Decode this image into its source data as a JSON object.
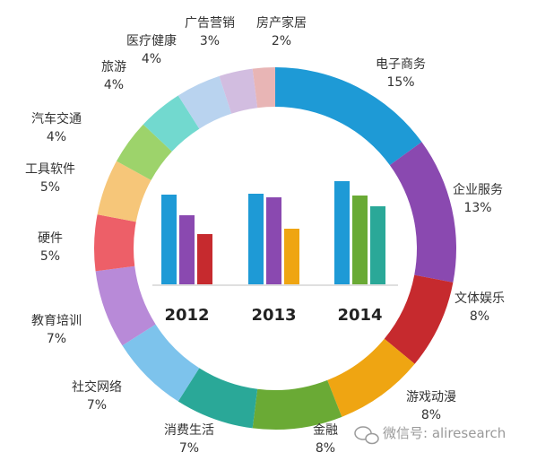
{
  "chart_data": [
    {
      "type": "pie",
      "variant": "donut",
      "categories": [
        "电子商务",
        "企业服务",
        "文体娱乐",
        "游戏动漫",
        "金融",
        "消费生活",
        "社交网络",
        "教育培训",
        "硬件",
        "工具软件",
        "汽车交通",
        "旅游",
        "医疗健康",
        "广告营销",
        "房产家居"
      ],
      "values": [
        15,
        13,
        8,
        8,
        8,
        7,
        7,
        7,
        5,
        5,
        4,
        4,
        4,
        3,
        2
      ],
      "value_labels": [
        "15%",
        "13%",
        "8%",
        "8%",
        "8%",
        "7%",
        "7%",
        "7%",
        "5%",
        "5%",
        "4%",
        "4%",
        "4%",
        "3%",
        "2%"
      ],
      "colors": [
        "#1e9ad6",
        "#8a49b0",
        "#c62a2e",
        "#efa512",
        "#6aaa35",
        "#2aa898",
        "#7dc3ec",
        "#b88ad8",
        "#ed5f68",
        "#f6c679",
        "#9dd36b",
        "#72d9cf",
        "#b9d3ef",
        "#d2bde0",
        "#e8b5b5"
      ]
    },
    {
      "type": "bar",
      "categories": [
        "2012",
        "2013",
        "2014"
      ],
      "series": [
        {
          "values": [
            100,
            101,
            115
          ],
          "colors": [
            "#1e9ad6",
            "#1e9ad6",
            "#1e9ad6"
          ]
        },
        {
          "values": [
            77,
            97,
            99
          ],
          "colors": [
            "#8a49b0",
            "#8a49b0",
            "#6aaa35"
          ]
        },
        {
          "values": [
            56,
            62,
            87
          ],
          "colors": [
            "#c62a2e",
            "#efa512",
            "#2aa898"
          ]
        }
      ]
    }
  ],
  "watermark": {
    "text": "微信号: aliresearch"
  }
}
